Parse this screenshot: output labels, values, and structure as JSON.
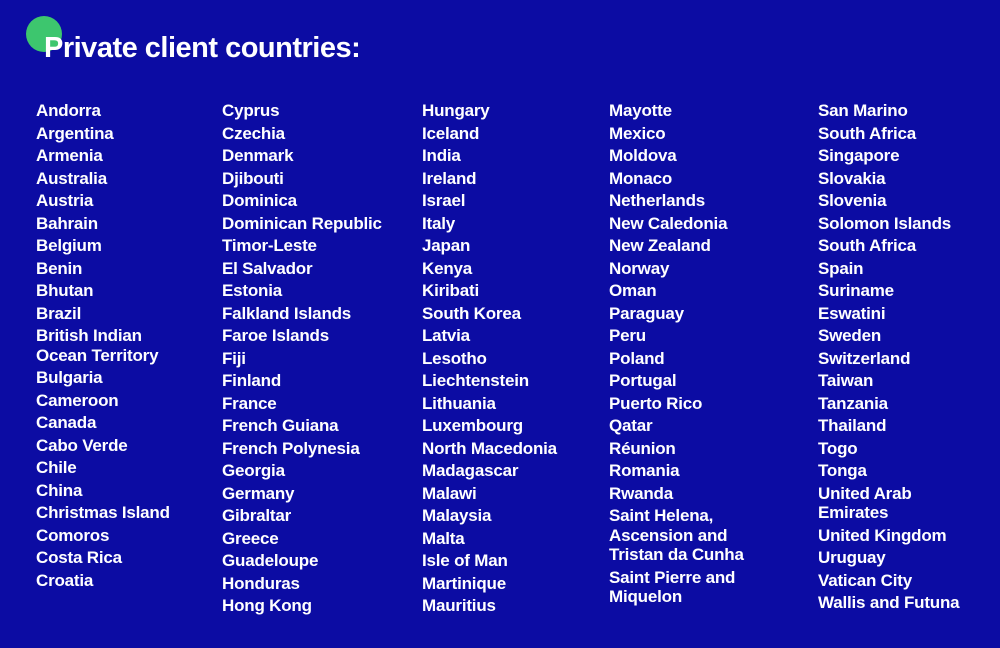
{
  "theme": {
    "background": "#0C0CA3",
    "text": "#FFFFFF",
    "accent_green": "#3DC66E"
  },
  "header": {
    "title": "Private client countries:"
  },
  "columns": [
    [
      "Andorra",
      "Argentina",
      "Armenia",
      "Australia",
      "Austria",
      "Bahrain",
      "Belgium",
      "Benin",
      "Bhutan",
      "Brazil",
      "British Indian\nOcean Territory",
      "Bulgaria",
      "Cameroon",
      "Canada",
      "Cabo Verde",
      "Chile",
      "China",
      "Christmas Island",
      "Comoros",
      "Costa Rica",
      "Croatia"
    ],
    [
      "Cyprus",
      "Czechia",
      "Denmark",
      "Djibouti",
      "Dominica",
      "Dominican Republic",
      "Timor-Leste",
      "El Salvador",
      "Estonia",
      "Falkland Islands",
      "Faroe Islands",
      "Fiji",
      "Finland",
      "France",
      "French Guiana",
      "French Polynesia",
      "Georgia",
      "Germany",
      "Gibraltar",
      "Greece",
      "Guadeloupe",
      "Honduras",
      "Hong Kong"
    ],
    [
      "Hungary",
      "Iceland",
      "India",
      "Ireland",
      "Israel",
      "Italy",
      "Japan",
      "Kenya",
      "Kiribati",
      "South Korea",
      "Latvia",
      "Lesotho",
      "Liechtenstein",
      "Lithuania",
      "Luxembourg",
      "North Macedonia",
      "Madagascar",
      "Malawi",
      "Malaysia",
      "Malta",
      "Isle of Man",
      "Martinique",
      "Mauritius"
    ],
    [
      "Mayotte",
      "Mexico",
      "Moldova",
      "Monaco",
      "Netherlands",
      "New Caledonia",
      "New Zealand",
      "Norway",
      "Oman",
      "Paraguay",
      "Peru",
      "Poland",
      "Portugal",
      "Puerto Rico",
      "Qatar",
      "Réunion",
      "Romania",
      "Rwanda",
      "Saint Helena,\nAscension and\nTristan da Cunha",
      "Saint Pierre and\nMiquelon"
    ],
    [
      "San Marino",
      "South Africa",
      "Singapore",
      "Slovakia",
      "Slovenia",
      "Solomon Islands",
      "South Africa",
      "Spain",
      "Suriname",
      "Eswatini",
      "Sweden",
      "Switzerland",
      "Taiwan",
      "Tanzania",
      "Thailand",
      "Togo",
      "Tonga",
      "United Arab\nEmirates",
      "United Kingdom",
      "Uruguay",
      "Vatican City",
      "Wallis and Futuna"
    ]
  ]
}
